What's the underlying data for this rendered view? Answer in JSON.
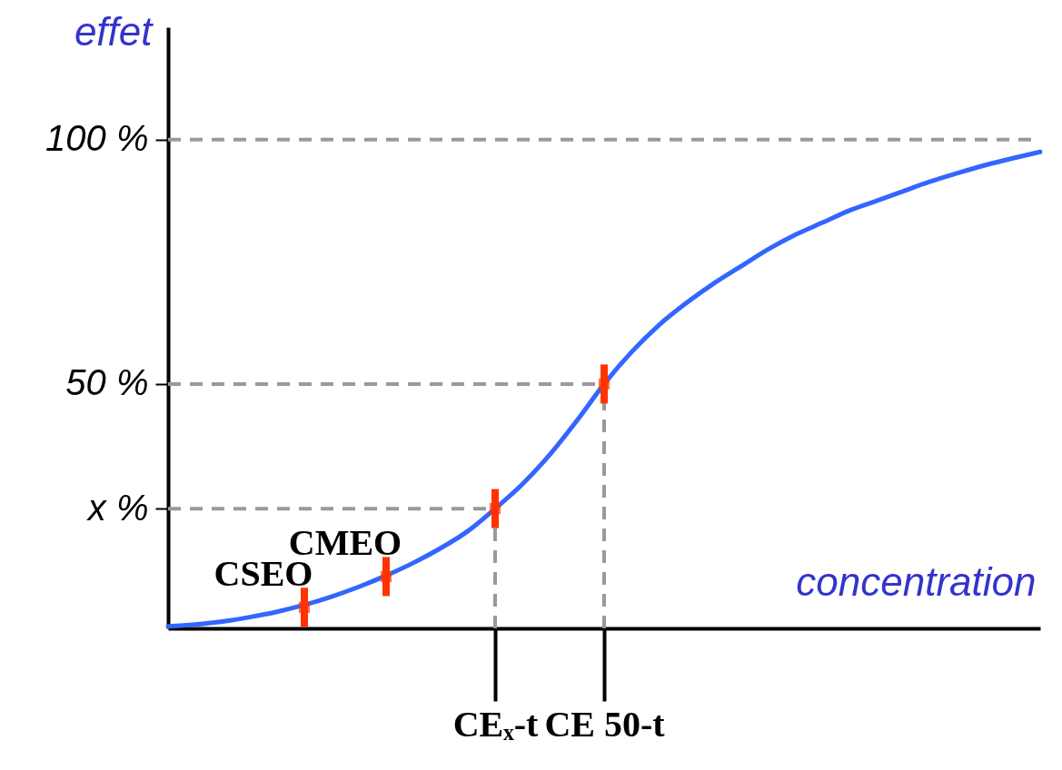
{
  "chart_data": {
    "type": "line",
    "xlabel": "concentration",
    "ylabel": "effet",
    "categories": [
      null,
      null,
      null,
      null,
      null,
      null,
      null,
      null,
      null,
      null,
      null,
      null,
      "CEₓ-t",
      null,
      null,
      null,
      "CE 50-t",
      null,
      null,
      null,
      null,
      null,
      null,
      null,
      null,
      null,
      null,
      null,
      null,
      null,
      null,
      null,
      null
    ],
    "series": [
      {
        "type": "line",
        "color": "#3366ff",
        "values": [
          0.4,
          0.8,
          1.4,
          2.3,
          3.4,
          4.8,
          6.5,
          8.5,
          10.8,
          13.4,
          16.4,
          19.9,
          24.5,
          29.5,
          35.5,
          42.5,
          50,
          56.5,
          62,
          66.5,
          70.5,
          74,
          77.5,
          80.5,
          83,
          85.5,
          87.5,
          89.5,
          91.5,
          93.2,
          94.8,
          96.2,
          97.5
        ]
      },
      {
        "type": "scatter",
        "color": "#ff3300",
        "marker": "square",
        "values": [
          null,
          null,
          null,
          null,
          null,
          4.3,
          null,
          null,
          10.6,
          null,
          null,
          null,
          24.5,
          null,
          null,
          null,
          50,
          null,
          null,
          null,
          null,
          null,
          null,
          null,
          null,
          null,
          null,
          null,
          null,
          null,
          null,
          null,
          null
        ],
        "errors": [
          null,
          null,
          null,
          null,
          null,
          4,
          null,
          null,
          4,
          null,
          null,
          null,
          4,
          null,
          null,
          null,
          4,
          null,
          null,
          null,
          null,
          null,
          null,
          null,
          null,
          null,
          null,
          null,
          null,
          null,
          null,
          null,
          null
        ]
      }
    ],
    "ylim": [
      0,
      123
    ],
    "yticks": [
      {
        "value": 24.5,
        "label": "x %"
      },
      {
        "value": 50,
        "label": "50 %"
      },
      {
        "value": 100,
        "label": "100 %"
      }
    ],
    "ref_lines": [
      {
        "axis": "y",
        "value": 100,
        "color": "#999999",
        "line_style": "dashed"
      },
      {
        "axis": "y",
        "value": 50,
        "color": "#999999",
        "line_style": "dashed"
      },
      {
        "axis": "y",
        "value": 24.5,
        "color": "#999999",
        "line_style": "dashed"
      },
      {
        "axis": "x",
        "value": "CEₓ-t",
        "color": "#999999",
        "line_style": "dashed"
      },
      {
        "axis": "x",
        "value": "CE 50-t",
        "color": "#999999",
        "line_style": "dashed"
      }
    ],
    "annotations": [
      "CSEO",
      "CMEO"
    ],
    "grid": false
  }
}
